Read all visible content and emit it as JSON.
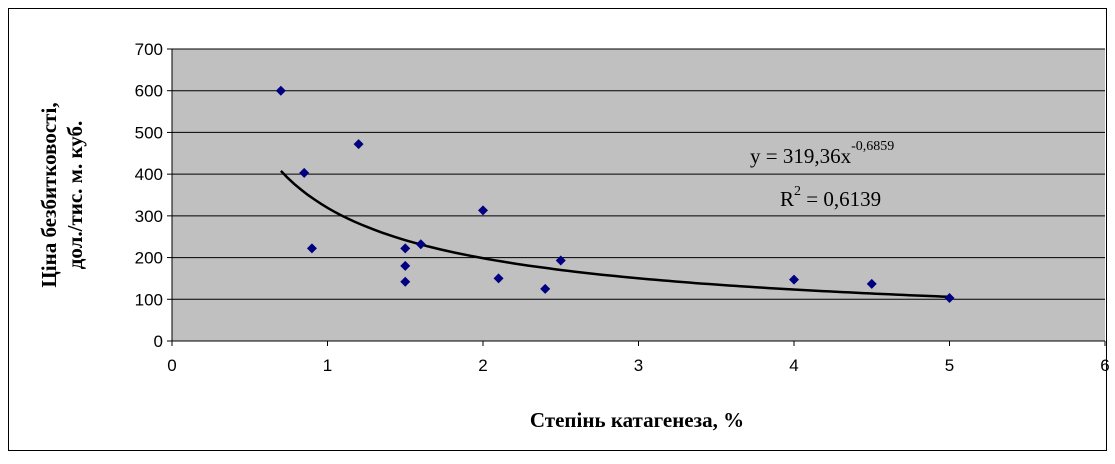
{
  "chart_data": {
    "type": "scatter",
    "x_label": "Степінь катагенеза, %",
    "y_label": [
      "Ціна безбитковості,",
      "дол./тис. м. куб."
    ],
    "series": [
      {
        "color": "#000080",
        "x": [
          0.7,
          0.85,
          0.9,
          1.2,
          1.5,
          1.5,
          1.5,
          1.6,
          2.0,
          2.1,
          2.4,
          2.5,
          4.0,
          4.5,
          5.0
        ],
        "values": [
          600,
          403,
          222,
          472,
          222,
          180,
          142,
          232,
          313,
          150,
          125,
          193,
          147,
          137,
          103
        ]
      }
    ],
    "trendline": {
      "type": "power",
      "a": 319.36,
      "b": -0.6859,
      "r2": 0.6139,
      "xrange": [
        0.7,
        5
      ],
      "color": "#000000"
    },
    "annotations": [
      {
        "text": "y = 319,36x",
        "sup": "-0,6859"
      },
      {
        "text": "R",
        "sup": "2",
        "rest": " = 0,6139"
      }
    ],
    "xlim": [
      0,
      6
    ],
    "xticks": [
      0,
      1,
      2,
      3,
      4,
      5,
      6
    ],
    "ylim": [
      0,
      700
    ],
    "yticks": [
      0,
      100,
      200,
      300,
      400,
      500,
      600,
      700
    ],
    "grid": true,
    "plot_background": "#c0c0c0"
  }
}
